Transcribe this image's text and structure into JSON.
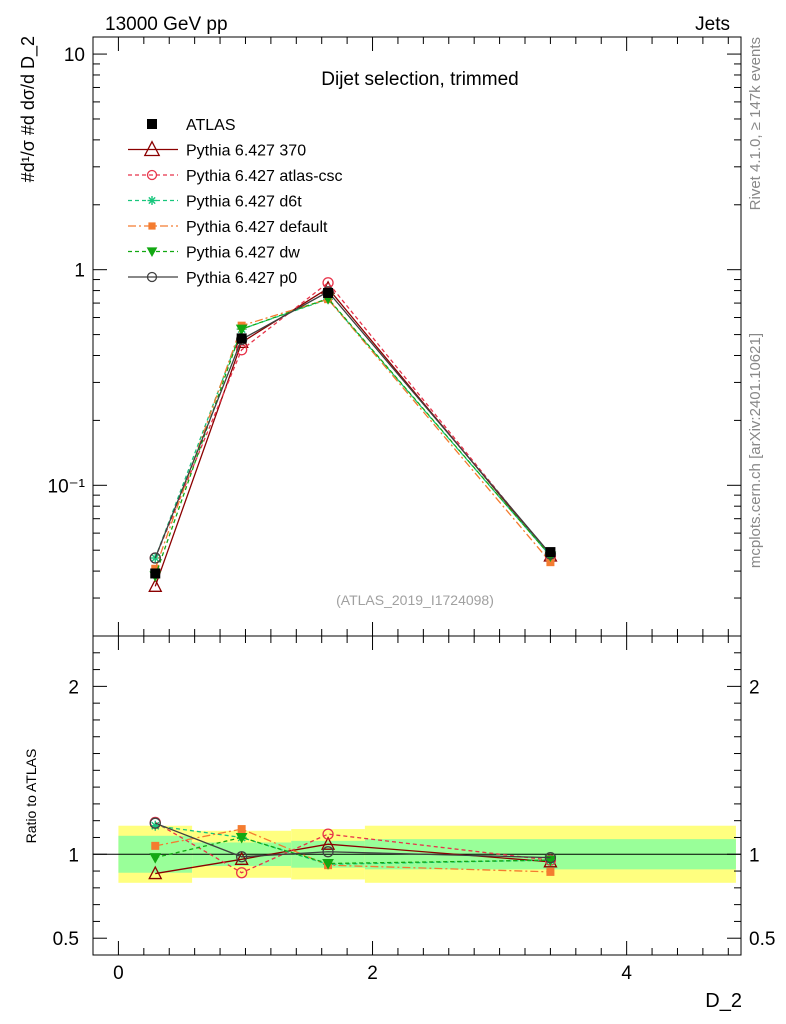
{
  "header": {
    "left": "13000 GeV pp",
    "right": "Jets"
  },
  "side_labels": {
    "rivet": "Rivet 4.1.0, ≥ 147k events",
    "mcplots": "mcplots.cern.ch [arXiv:2401.10621]"
  },
  "chart_data": [
    {
      "type": "line",
      "title": "Dijet selection, trimmed",
      "watermark": "(ATLAS_2019_I1724098)",
      "ylabel": "#d¹/σ #d dσ/d D_2",
      "yscale": "log",
      "ylim": [
        0.02,
        12
      ],
      "xlim": [
        -0.2,
        4.9
      ],
      "yticks": [
        "10⁻¹",
        "1",
        "10"
      ],
      "legend_position": "top-left",
      "x": [
        0.29,
        0.97,
        1.65,
        3.4
      ],
      "bins": [
        [
          0.0,
          0.58
        ],
        [
          0.58,
          1.36
        ],
        [
          1.36,
          1.94
        ],
        [
          1.94,
          4.86
        ]
      ],
      "data": {
        "name": "ATLAS",
        "values": [
          0.039,
          0.48,
          0.78,
          0.049
        ],
        "errors": [
          0.002,
          0.01,
          0.01,
          0.001
        ]
      },
      "series": [
        {
          "name": "Pythia 6.427 370",
          "values": [
            0.034,
            0.46,
            0.82,
            0.047
          ],
          "color": "#8b0000",
          "dash": "",
          "marker": "triangle-open"
        },
        {
          "name": "Pythia 6.427 atlas-csc",
          "values": [
            0.046,
            0.425,
            0.87,
            0.047
          ],
          "color": "#e8334a",
          "dash": "4,3",
          "marker": "circle-open"
        },
        {
          "name": "Pythia 6.427 d6t",
          "values": [
            0.046,
            0.53,
            0.73,
            0.047
          ],
          "color": "#17c67c",
          "dash": "4,3",
          "marker": "star"
        },
        {
          "name": "Pythia 6.427 default",
          "values": [
            0.041,
            0.55,
            0.73,
            0.044
          ],
          "color": "#f47c30",
          "dash": "8,3,2,3",
          "marker": "square"
        },
        {
          "name": "Pythia 6.427 dw",
          "values": [
            0.038,
            0.53,
            0.735,
            0.047
          ],
          "color": "#12a812",
          "dash": "4,3",
          "marker": "triangle-down"
        },
        {
          "name": "Pythia 6.427 p0",
          "values": [
            0.046,
            0.475,
            0.79,
            0.048
          ],
          "color": "#404040",
          "dash": "",
          "marker": "circle-open"
        }
      ]
    },
    {
      "type": "line",
      "ylabel": "Ratio to ATLAS",
      "xlabel": "D_2",
      "ylim": [
        0.4,
        2.3
      ],
      "xticks": [
        "0",
        "2",
        "4"
      ],
      "yticks": [
        "0.5",
        "1",
        "2"
      ],
      "band_stat_rel": [
        0.11,
        0.07,
        0.08,
        0.09
      ],
      "band_total_rel": [
        0.17,
        0.14,
        0.15,
        0.17
      ],
      "ratio_series": [
        {
          "name": "Pythia 6.427 370",
          "values": [
            0.885,
            0.97,
            1.06,
            0.955
          ]
        },
        {
          "name": "Pythia 6.427 atlas-csc",
          "values": [
            1.19,
            0.89,
            1.12,
            0.965
          ]
        },
        {
          "name": "Pythia 6.427 d6t",
          "values": [
            1.17,
            1.1,
            0.94,
            0.965
          ]
        },
        {
          "name": "Pythia 6.427 default",
          "values": [
            1.05,
            1.15,
            0.935,
            0.895
          ]
        },
        {
          "name": "Pythia 6.427 dw",
          "values": [
            0.98,
            1.1,
            0.945,
            0.965
          ]
        },
        {
          "name": "Pythia 6.427 p0",
          "values": [
            1.185,
            0.985,
            1.015,
            0.98
          ]
        }
      ]
    }
  ]
}
